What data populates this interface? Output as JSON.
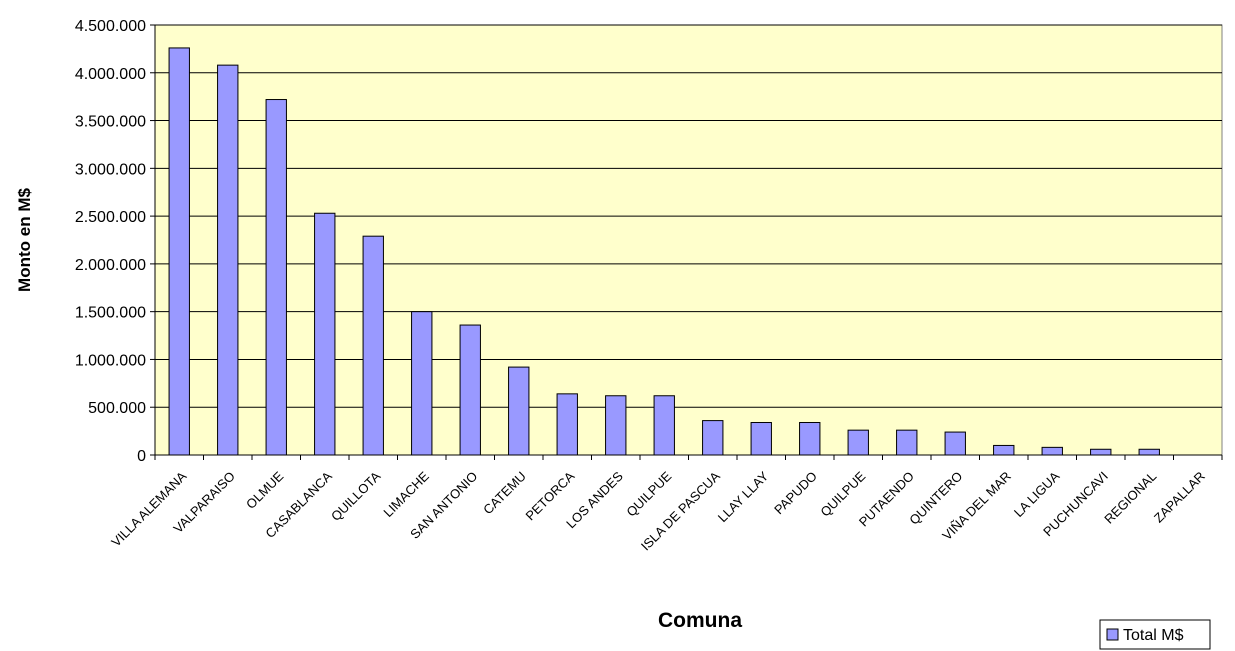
{
  "chart_data": {
    "type": "bar",
    "title": "",
    "xlabel": "Comuna",
    "ylabel": "Monto en M$",
    "ylim": [
      0,
      4500000
    ],
    "yticks": [
      0,
      500000,
      1000000,
      1500000,
      2000000,
      2500000,
      3000000,
      3500000,
      4000000,
      4500000
    ],
    "ytick_labels": [
      "0",
      "500.000",
      "1.000.000",
      "1.500.000",
      "2.000.000",
      "2.500.000",
      "3.000.000",
      "3.500.000",
      "4.000.000",
      "4.500.000"
    ],
    "grid": true,
    "legend_position": "bottom-right",
    "categories": [
      "VILLA ALEMANA",
      "VALPARAISO",
      "OLMUE",
      "CASABLANCA",
      "QUILLOTA",
      "LIMACHE",
      "SAN ANTONIO",
      "CATEMU",
      "PETORCA",
      "LOS ANDES",
      "QUILPUE",
      "ISLA DE PASCUA",
      "LLAY LLAY",
      "PAPUDO",
      "QUILPUE",
      "PUTAENDO",
      "QUINTERO",
      "VIÑA DEL MAR",
      "LA LIGUA",
      "PUCHUNCAVI",
      "REGIONAL",
      "ZAPALLAR"
    ],
    "series": [
      {
        "name": "Total M$",
        "color": "#9999ff",
        "values": [
          4260000,
          4080000,
          3720000,
          2530000,
          2290000,
          1500000,
          1360000,
          920000,
          640000,
          620000,
          620000,
          360000,
          340000,
          340000,
          260000,
          260000,
          240000,
          100000,
          80000,
          60000,
          60000,
          0
        ]
      }
    ],
    "plot_background": "#ffffcc"
  }
}
